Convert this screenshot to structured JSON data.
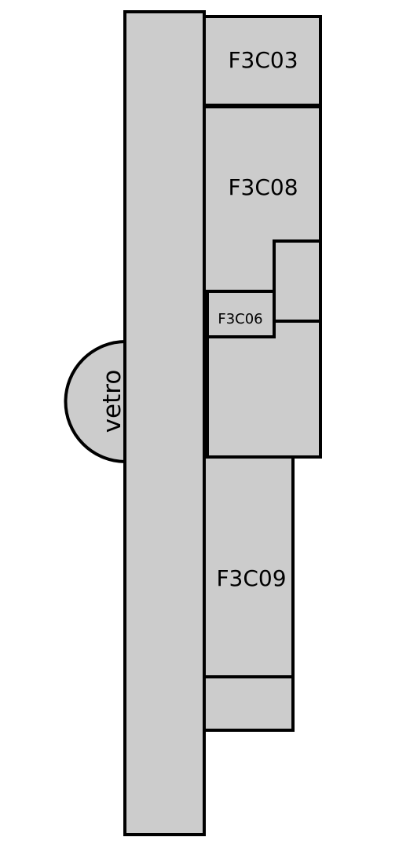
{
  "colors": {
    "room_fill": "#cccccc",
    "stroke": "#000000",
    "background": "#ffffff"
  },
  "rooms": {
    "f3c03": {
      "label": "F3C03"
    },
    "f3c08": {
      "label": "F3C08"
    },
    "f3c06": {
      "label": "F3C06"
    },
    "f3c09": {
      "label": "F3C09"
    }
  },
  "vetro": {
    "label": "vetro"
  }
}
